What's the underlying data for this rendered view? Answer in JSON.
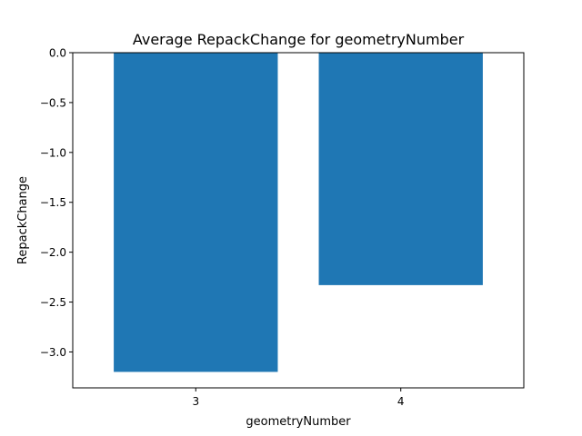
{
  "chart_data": {
    "type": "bar",
    "title": "Average RepackChange for geometryNumber",
    "xlabel": "geometryNumber",
    "ylabel": "RepackChange",
    "categories": [
      "3",
      "4"
    ],
    "values": [
      -3.2,
      -2.33
    ],
    "ylim": [
      -3.36,
      0.0
    ],
    "yticks": [
      0.0,
      -0.5,
      -1.0,
      -1.5,
      -2.0,
      -2.5,
      -3.0
    ],
    "ytick_labels": [
      "0.0",
      "−0.5",
      "−1.0",
      "−1.5",
      "−2.0",
      "−2.5",
      "−3.0"
    ],
    "bar_color": "#1f77b4",
    "grid": false,
    "legend": "none"
  }
}
